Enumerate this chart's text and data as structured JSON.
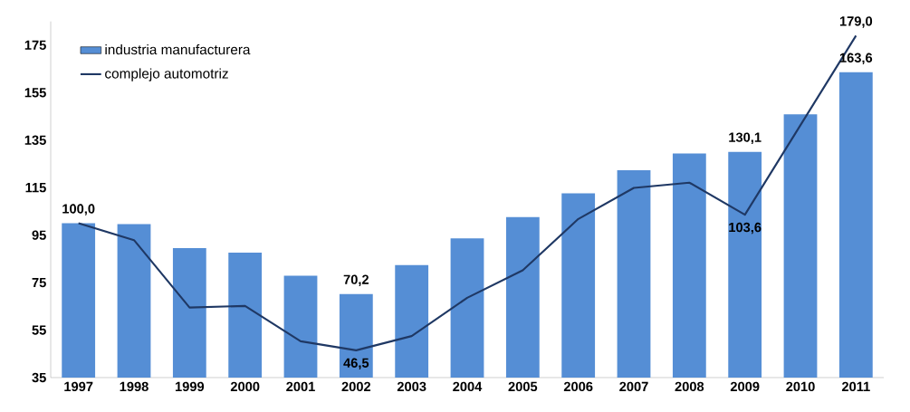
{
  "chart_data": {
    "type": "bar",
    "categories": [
      "1997",
      "1998",
      "1999",
      "2000",
      "2001",
      "2002",
      "2003",
      "2004",
      "2005",
      "2006",
      "2007",
      "2008",
      "2009",
      "2010",
      "2011"
    ],
    "series": [
      {
        "name": "industria manufacturera",
        "color": "#558ed5",
        "values": [
          100.0,
          99.6,
          89.5,
          87.6,
          77.9,
          70.2,
          82.4,
          93.6,
          102.6,
          112.6,
          122.3,
          129.4,
          130.1,
          145.9,
          163.6
        ],
        "value_labels": [
          "100,0",
          null,
          null,
          null,
          null,
          "70,2",
          null,
          null,
          null,
          null,
          null,
          null,
          "130,1",
          null,
          "163,6"
        ]
      },
      {
        "name": "complejo automotriz",
        "type": "line",
        "color": "#1f3864",
        "values": [
          100.0,
          92.9,
          64.5,
          65.2,
          50.3,
          46.5,
          52.5,
          68.6,
          80.2,
          101.8,
          114.9,
          117.1,
          103.6,
          141.3,
          179.0
        ],
        "value_labels": [
          null,
          null,
          null,
          null,
          null,
          "46,5",
          null,
          null,
          null,
          null,
          null,
          null,
          "103,6",
          null,
          "179,0"
        ]
      }
    ],
    "ylim": [
      35,
      185
    ],
    "yticks": [
      35,
      55,
      75,
      95,
      115,
      135,
      155,
      175
    ],
    "legend": "top left",
    "marker": "none",
    "line_style": "solid"
  }
}
